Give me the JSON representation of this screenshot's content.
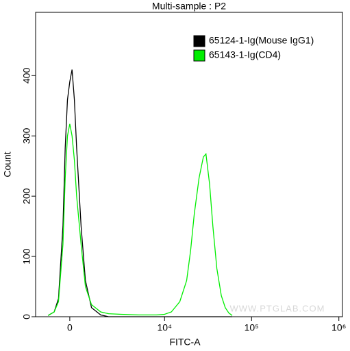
{
  "chart_data": {
    "type": "line",
    "title": "Multi-sample : P2",
    "x_label": "FITC-A",
    "y_label": "Count",
    "watermark": "WWW.PTGLAB.COM",
    "xscale": "biexponential",
    "x": [
      -1000,
      -700,
      -500,
      -300,
      -200,
      -100,
      0,
      100,
      200,
      300,
      500,
      700,
      1000,
      1500,
      2000,
      3000,
      5000,
      8000,
      10000,
      12000,
      15000,
      18000,
      20000,
      22000,
      25000,
      28000,
      30000,
      33000,
      36000,
      40000,
      45000,
      50000,
      55000,
      60000
    ],
    "series": [
      {
        "name": "65124-1-Ig(Mouse IgG1)",
        "color": "#000000",
        "values": [
          2,
          8,
          30,
          150,
          280,
          360,
          390,
          410,
          360,
          280,
          150,
          60,
          15,
          3,
          0,
          0,
          0,
          0,
          0,
          0,
          0,
          0,
          0,
          0,
          0,
          0,
          0,
          0,
          0,
          0,
          0,
          0,
          0,
          0
        ]
      },
      {
        "name": "65143-1-Ig(CD4)",
        "color": "#00ee00",
        "values": [
          2,
          8,
          25,
          120,
          230,
          300,
          320,
          300,
          260,
          200,
          120,
          50,
          20,
          8,
          5,
          4,
          3,
          3,
          4,
          8,
          25,
          60,
          110,
          170,
          230,
          265,
          270,
          220,
          150,
          80,
          35,
          15,
          6,
          2
        ]
      }
    ],
    "xlim": [
      -1700,
      1100000
    ],
    "xticks": [
      0,
      {
        "value": 10000,
        "label": "10⁴"
      },
      {
        "value": 100000,
        "label": "10⁵"
      },
      {
        "value": 1000000,
        "label": "10⁶"
      }
    ],
    "ylim": [
      0,
      505
    ],
    "yticks": [
      0,
      100,
      200,
      300,
      400
    ],
    "legend": "top-right"
  }
}
